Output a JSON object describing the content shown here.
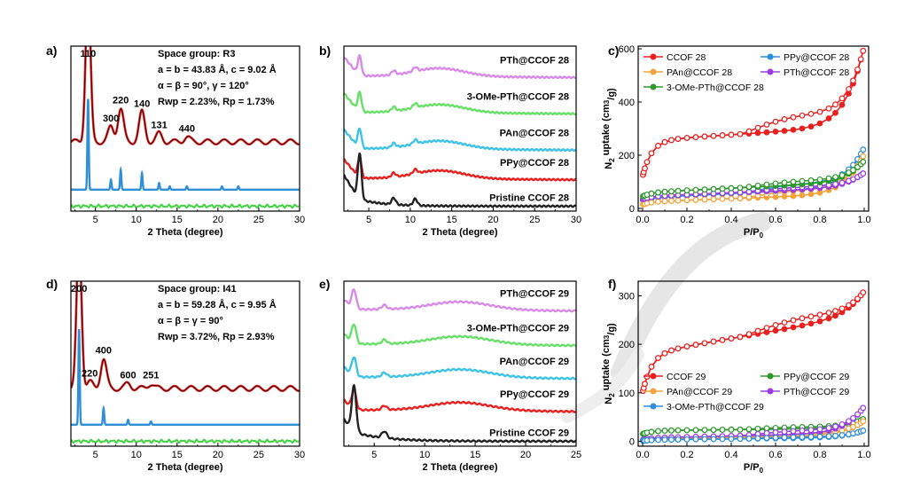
{
  "colors": {
    "red": "#e8201f",
    "blue": "#2f8fd8",
    "green": "#3fd33f",
    "orange": "#f2a33a",
    "purple": "#9a3ee0",
    "dgreen": "#2b9a2b",
    "pink": "#d88ae8",
    "cyan": "#3ec3e6",
    "black": "#222222",
    "lightgreen": "#67e067"
  },
  "chart_data": [
    {
      "id": "a",
      "panel_label": "a)",
      "type": "line",
      "xlabel": "2 Theta (degree)",
      "ylabel": "",
      "xlim": [
        2,
        30
      ],
      "xticks": [
        5,
        10,
        15,
        20,
        25,
        30
      ],
      "info": [
        "Space group: R3",
        "a = b = 43.83 Å, c = 9.02 Å",
        "α = β = 90°, γ = 120°",
        "Rwp = 2.23%, Rp = 1.73%"
      ],
      "peak_labels": [
        {
          "text": "110",
          "x": 4.1
        },
        {
          "text": "300",
          "x": 6.9
        },
        {
          "text": "220",
          "x": 8.1
        },
        {
          "text": "140",
          "x": 10.7
        },
        {
          "text": "131",
          "x": 12.8
        },
        {
          "text": "440",
          "x": 16.2
        }
      ],
      "series": [
        {
          "role": "experimental",
          "color": "red",
          "baseline": 0.42,
          "peaks": [
            [
              4.1,
              0.92
            ],
            [
              6.9,
              0.09
            ],
            [
              8.1,
              0.2
            ],
            [
              10.7,
              0.18
            ],
            [
              12.8,
              0.05
            ],
            [
              16.2,
              0.03
            ]
          ]
        },
        {
          "role": "simulated",
          "color": "blue",
          "baseline": 0.13,
          "peaks": [
            [
              4.1,
              0.55
            ],
            [
              6.9,
              0.06
            ],
            [
              8.1,
              0.12
            ],
            [
              10.7,
              0.1
            ],
            [
              12.8,
              0.04
            ],
            [
              14.1,
              0.02
            ],
            [
              16.2,
              0.02
            ],
            [
              20.5,
              0.02
            ],
            [
              22.5,
              0.02
            ]
          ]
        },
        {
          "role": "difference",
          "color": "green",
          "baseline": 0.03,
          "peaks": []
        }
      ]
    },
    {
      "id": "b",
      "panel_label": "b)",
      "type": "line",
      "xlabel": "2 Theta (degree)",
      "ylabel": "",
      "xlim": [
        2,
        30
      ],
      "xticks": [
        5,
        10,
        15,
        20,
        25,
        30
      ],
      "series": [
        {
          "name": "PTh@CCOF 28",
          "color": "pink",
          "offset": 0.82
        },
        {
          "name": "3-OMe-PTh@CCOF 28",
          "color": "lightgreen",
          "offset": 0.6
        },
        {
          "name": "PAn@CCOF 28",
          "color": "cyan",
          "offset": 0.38
        },
        {
          "name": "PPy@CCOF 28",
          "color": "red",
          "offset": 0.2
        },
        {
          "name": "Pristine CCOF 28",
          "color": "black",
          "offset": 0.03
        }
      ]
    },
    {
      "id": "c",
      "panel_label": "c)",
      "type": "scatter",
      "xlabel": "P/P0",
      "ylabel": "N2 uptake (cm3/g)",
      "xlim": [
        -0.02,
        1.02
      ],
      "ylim": [
        -10,
        610
      ],
      "xticks": [
        0.0,
        0.2,
        0.4,
        0.6,
        0.8,
        1.0
      ],
      "yticks": [
        0,
        200,
        400,
        600
      ],
      "legend_position": "top",
      "series": [
        {
          "name": "CCOF 28",
          "color": "red",
          "plateau": 255,
          "slope": 55,
          "rise": 300,
          "start": 120
        },
        {
          "name": "PPy@CCOF 28",
          "color": "blue",
          "plateau": 40,
          "slope": 40,
          "rise": 150,
          "start": 30
        },
        {
          "name": "PAn@CCOF 28",
          "color": "orange",
          "plateau": 25,
          "slope": 30,
          "rise": 150,
          "start": 15
        },
        {
          "name": "PTh@CCOF 28",
          "color": "purple",
          "plateau": 45,
          "slope": 35,
          "rise": 55,
          "start": 35
        },
        {
          "name": "3-OMe-PTh@CCOF 28",
          "color": "dgreen",
          "plateau": 60,
          "slope": 40,
          "rise": 80,
          "start": 45
        }
      ]
    },
    {
      "id": "d",
      "panel_label": "d)",
      "type": "line",
      "xlabel": "2 Theta (degree)",
      "ylabel": "",
      "xlim": [
        2,
        30
      ],
      "xticks": [
        5,
        10,
        15,
        20,
        25,
        30
      ],
      "info": [
        "Space group: I41",
        "a = b = 59.28 Å, c = 9.95 Å",
        "α = β = γ = 90°",
        "Rwp = 3.72%, Rp = 2.93%"
      ],
      "peak_labels": [
        {
          "text": "200",
          "x": 3.0
        },
        {
          "text": "220",
          "x": 4.3
        },
        {
          "text": "400",
          "x": 6.0
        },
        {
          "text": "600",
          "x": 9.0
        },
        {
          "text": "251",
          "x": 11.8
        }
      ],
      "series": [
        {
          "role": "experimental",
          "color": "red",
          "baseline": 0.35,
          "peaks": [
            [
              3.0,
              0.92
            ],
            [
              4.3,
              0.04
            ],
            [
              6.0,
              0.18
            ],
            [
              9.0,
              0.03
            ],
            [
              11.8,
              0.03
            ]
          ]
        },
        {
          "role": "simulated",
          "color": "blue",
          "baseline": 0.13,
          "peaks": [
            [
              3.0,
              0.58
            ],
            [
              6.0,
              0.1
            ],
            [
              9.0,
              0.03
            ],
            [
              11.8,
              0.02
            ]
          ]
        },
        {
          "role": "difference",
          "color": "green",
          "baseline": 0.03,
          "peaks": []
        }
      ]
    },
    {
      "id": "e",
      "panel_label": "e)",
      "type": "line",
      "xlabel": "2 Theta (degree)",
      "ylabel": "",
      "xlim": [
        2,
        25
      ],
      "xticks": [
        5,
        10,
        15,
        20,
        25
      ],
      "series": [
        {
          "name": "PTh@CCOF 29",
          "color": "pink",
          "offset": 0.83
        },
        {
          "name": "3-OMe-PTh@CCOF 29",
          "color": "lightgreen",
          "offset": 0.62
        },
        {
          "name": "PAn@CCOF 29",
          "color": "cyan",
          "offset": 0.42
        },
        {
          "name": "PPy@CCOF 29",
          "color": "red",
          "offset": 0.22
        },
        {
          "name": "Pristine CCOF 29",
          "color": "black",
          "offset": 0.03
        }
      ]
    },
    {
      "id": "f",
      "panel_label": "f)",
      "type": "scatter",
      "xlabel": "P/P0",
      "ylabel": "N2 uptake (cm3/g)",
      "xlim": [
        -0.02,
        1.02
      ],
      "ylim": [
        -10,
        330
      ],
      "xticks": [
        0.0,
        0.2,
        0.4,
        0.6,
        0.8,
        1.0
      ],
      "yticks": [
        0,
        100,
        200,
        300
      ],
      "legend_position": "bottom",
      "series": [
        {
          "name": "CCOF 29",
          "color": "red",
          "plateau": 180,
          "slope": 80,
          "rise": 50,
          "start": 100
        },
        {
          "name": "PPy@CCOF 29",
          "color": "dgreen",
          "plateau": 22,
          "slope": 5,
          "rise": 20,
          "start": 15
        },
        {
          "name": "PAn@CCOF 29",
          "color": "orange",
          "plateau": 5,
          "slope": 8,
          "rise": 30,
          "start": 2
        },
        {
          "name": "PTh@CCOF 29",
          "color": "purple",
          "plateau": 7,
          "slope": 10,
          "rise": 55,
          "start": 3
        },
        {
          "name": "3-OMe-PTh@CCOF 29",
          "color": "blue",
          "plateau": 3,
          "slope": 5,
          "rise": 15,
          "start": 1
        }
      ]
    }
  ]
}
